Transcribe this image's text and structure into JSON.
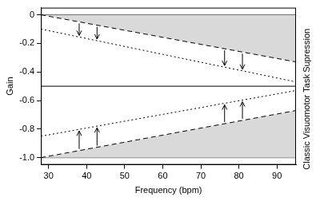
{
  "chart_data": {
    "type": "line",
    "x_label": "Frequency (bpm)",
    "y_label": "Gain",
    "x": [
      28,
      95
    ],
    "series": [
      {
        "color": "#000000",
        "line_style": "dashed",
        "values": [
          0,
          -0.33
        ]
      },
      {
        "color": "#000000",
        "line_style": "dotted",
        "values": [
          -0.1,
          -0.47
        ]
      },
      {
        "color": "#000000",
        "line_style": "dashed",
        "values": [
          -1,
          -0.67
        ]
      },
      {
        "color": "#000000",
        "line_style": "dotted",
        "values": [
          -0.85,
          -0.53
        ]
      },
      {
        "color": "#000000",
        "line_style": "solid",
        "values": [
          0,
          0
        ]
      },
      {
        "color": "#000000",
        "line_style": "solid",
        "values": [
          -0.5,
          -0.5
        ]
      },
      {
        "color": "#000000",
        "line_style": "solid",
        "values": [
          -1,
          -1
        ]
      }
    ],
    "xlim": [
      28,
      95
    ],
    "xticks": [
      30,
      40,
      50,
      60,
      70,
      80,
      90
    ],
    "ylim": [
      -1.05,
      0.05
    ],
    "yticks": [
      {
        "value": -1,
        "label": "-1.0"
      },
      -0.8,
      -0.6,
      -0.4,
      -0.2,
      0
    ],
    "annotations": [
      {
        "text": "Supression"
      },
      {
        "text": "Classic Visuomotor Task"
      }
    ],
    "grid": false
  }
}
